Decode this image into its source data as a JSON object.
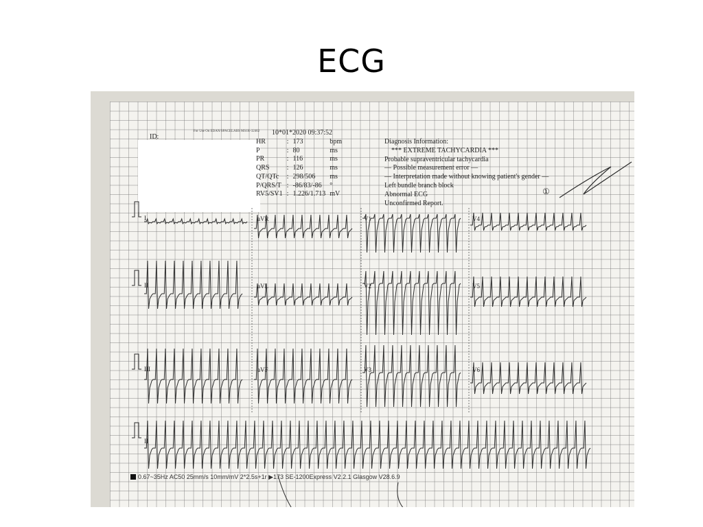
{
  "slide": {
    "title": "ECG"
  },
  "ecg_report": {
    "id_label": "ID:",
    "device_note": "For Use On EDAN/SPACELABS MS1R-32462",
    "date_time": "10*01*2020  09:37:52",
    "measurements": [
      {
        "label": "HR",
        "value": "173",
        "unit": "bpm"
      },
      {
        "label": "P",
        "value": "80",
        "unit": "ms"
      },
      {
        "label": "PR",
        "value": "116",
        "unit": "ms"
      },
      {
        "label": "QRS",
        "value": "126",
        "unit": "ms"
      },
      {
        "label": "QT/QTc",
        "value": "298/506",
        "unit": "ms"
      },
      {
        "label": "P/QRS/T",
        "value": "-86/83/-86",
        "unit": "°"
      },
      {
        "label": "RV5/SV1",
        "value": "1.226/1.713",
        "unit": "mV"
      }
    ],
    "diagnosis": [
      "Diagnosis Information:",
      "*** EXTREME TACHYCARDIA ***",
      "Probable supraventricular tachycardia",
      "— Possible measurement error —",
      "— Interpretation made without knowing patient's gender —",
      "Left bundle branch block",
      "Abnormal ECG",
      "Unconfirmed Report."
    ],
    "handwritten_mark": "①",
    "leads": {
      "row1": [
        "I",
        "aVR",
        "V1",
        "V4"
      ],
      "row2": [
        "II",
        "aVL",
        "V2",
        "V5"
      ],
      "row3": [
        "III",
        "aVF",
        "V3",
        "V6"
      ],
      "row4": [
        "II"
      ]
    },
    "footer": "0.67~35Hz  AC50  25mm/s  10mm/mV  2*2.5s+1r  ▶173  SE-1200Express  V2.2.1  Glasgow V28.6.9"
  }
}
